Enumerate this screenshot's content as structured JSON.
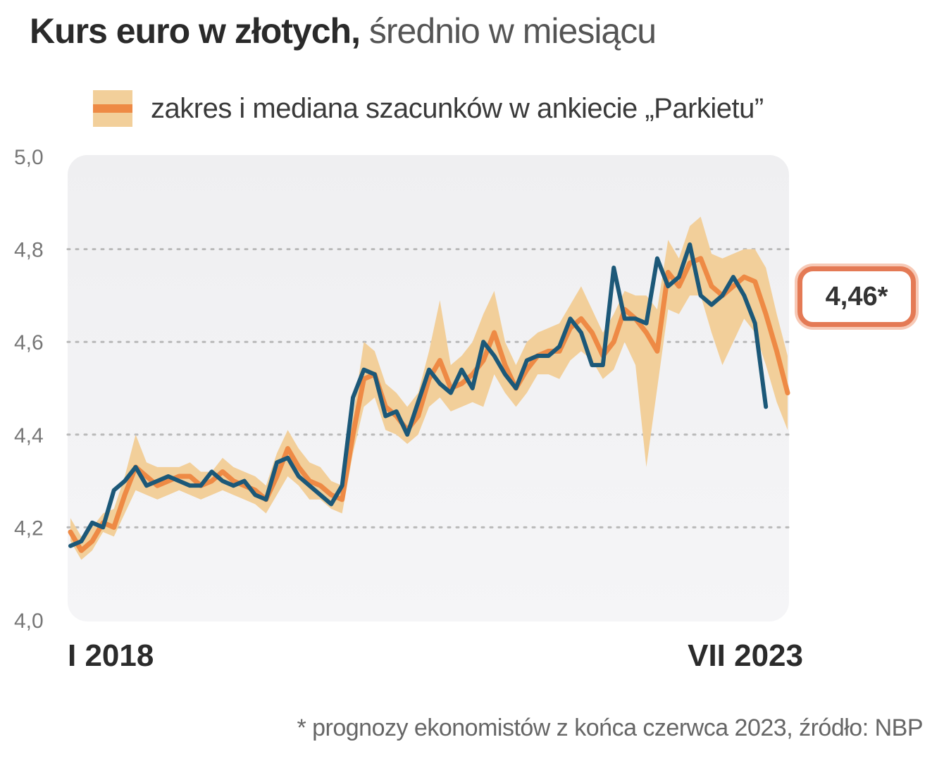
{
  "title_bold": "Kurs euro w złotych,",
  "title_light": "średnio w miesiącu",
  "legend_label": "zakres i mediana szacunków w ankiecie „Parkietu”",
  "callout_value": "4,46*",
  "footnote": "* prognozy ekonomistów z końca czerwca 2023, źródło: NBP",
  "colors": {
    "actual_line": "#1c5878",
    "median_line": "#ee8a45",
    "range_band": "#f2cf9a",
    "callout_border": "#e47a55"
  },
  "chart_data": {
    "type": "line",
    "x_start": "I 2018",
    "x_end": "VII 2023",
    "ylim": [
      4.0,
      5.0
    ],
    "y_ticks": [
      "4,0",
      "4,2",
      "4,4",
      "4,6",
      "4,8",
      "5,0"
    ],
    "y_tick_values": [
      4.0,
      4.2,
      4.4,
      4.6,
      4.8,
      5.0
    ],
    "x_tick_labels": [
      "I 2018",
      "VII 2023"
    ],
    "grid": "horizontal dotted",
    "legend": "top",
    "n_months": 67,
    "series": [
      {
        "name": "kurs EUR/PLN (średnio w miesiącu)",
        "values": [
          4.16,
          4.17,
          4.21,
          4.2,
          4.28,
          4.3,
          4.33,
          4.29,
          4.3,
          4.31,
          4.3,
          4.29,
          4.29,
          4.32,
          4.3,
          4.29,
          4.3,
          4.27,
          4.26,
          4.34,
          4.35,
          4.31,
          4.29,
          4.27,
          4.25,
          4.29,
          4.48,
          4.54,
          4.53,
          4.44,
          4.45,
          4.4,
          4.47,
          4.54,
          4.51,
          4.49,
          4.54,
          4.5,
          4.6,
          4.57,
          4.53,
          4.5,
          4.56,
          4.57,
          4.57,
          4.59,
          4.65,
          4.62,
          4.55,
          4.55,
          4.76,
          4.65,
          4.65,
          4.64,
          4.78,
          4.72,
          4.74,
          4.81,
          4.7,
          4.68,
          4.7,
          4.74,
          4.7,
          4.64,
          4.46
        ]
      },
      {
        "name": "mediana szacunków",
        "values": [
          4.19,
          4.15,
          4.17,
          4.21,
          4.2,
          4.27,
          4.33,
          4.31,
          4.29,
          4.3,
          4.31,
          4.31,
          4.29,
          4.3,
          4.32,
          4.3,
          4.29,
          4.28,
          4.26,
          4.31,
          4.37,
          4.33,
          4.3,
          4.29,
          4.27,
          4.26,
          4.4,
          4.52,
          4.53,
          4.46,
          4.44,
          4.41,
          4.44,
          4.52,
          4.56,
          4.5,
          4.51,
          4.53,
          4.56,
          4.62,
          4.55,
          4.5,
          4.54,
          4.57,
          4.58,
          4.58,
          4.63,
          4.65,
          4.62,
          4.57,
          4.6,
          4.67,
          4.65,
          4.62,
          4.58,
          4.75,
          4.72,
          4.77,
          4.78,
          4.72,
          4.7,
          4.72,
          4.74,
          4.73,
          4.66,
          4.58,
          4.49
        ]
      },
      {
        "name": "zakres szacunków - minimum",
        "values": [
          4.17,
          4.13,
          4.15,
          4.19,
          4.18,
          4.23,
          4.28,
          4.27,
          4.26,
          4.27,
          4.28,
          4.27,
          4.26,
          4.27,
          4.28,
          4.27,
          4.26,
          4.25,
          4.23,
          4.27,
          4.31,
          4.29,
          4.26,
          4.26,
          4.24,
          4.23,
          4.36,
          4.46,
          4.48,
          4.41,
          4.4,
          4.38,
          4.4,
          4.46,
          4.48,
          4.45,
          4.46,
          4.47,
          4.46,
          4.53,
          4.49,
          4.46,
          4.49,
          4.53,
          4.53,
          4.52,
          4.56,
          4.58,
          4.56,
          4.52,
          4.54,
          4.6,
          4.55,
          4.33,
          4.5,
          4.67,
          4.66,
          4.7,
          4.7,
          4.62,
          4.55,
          4.6,
          4.65,
          4.62,
          4.55,
          4.47,
          4.41
        ]
      },
      {
        "name": "zakres szacunków - maksimum",
        "values": [
          4.22,
          4.18,
          4.2,
          4.23,
          4.24,
          4.31,
          4.4,
          4.34,
          4.33,
          4.33,
          4.33,
          4.34,
          4.32,
          4.32,
          4.35,
          4.33,
          4.32,
          4.31,
          4.29,
          4.36,
          4.41,
          4.37,
          4.34,
          4.33,
          4.3,
          4.29,
          4.44,
          4.6,
          4.58,
          4.51,
          4.49,
          4.46,
          4.49,
          4.58,
          4.69,
          4.55,
          4.57,
          4.6,
          4.66,
          4.71,
          4.6,
          4.55,
          4.6,
          4.62,
          4.63,
          4.64,
          4.68,
          4.72,
          4.67,
          4.62,
          4.66,
          4.71,
          4.7,
          4.7,
          4.67,
          4.82,
          4.78,
          4.85,
          4.87,
          4.79,
          4.78,
          4.79,
          4.8,
          4.8,
          4.76,
          4.66,
          4.57
        ]
      }
    ]
  }
}
